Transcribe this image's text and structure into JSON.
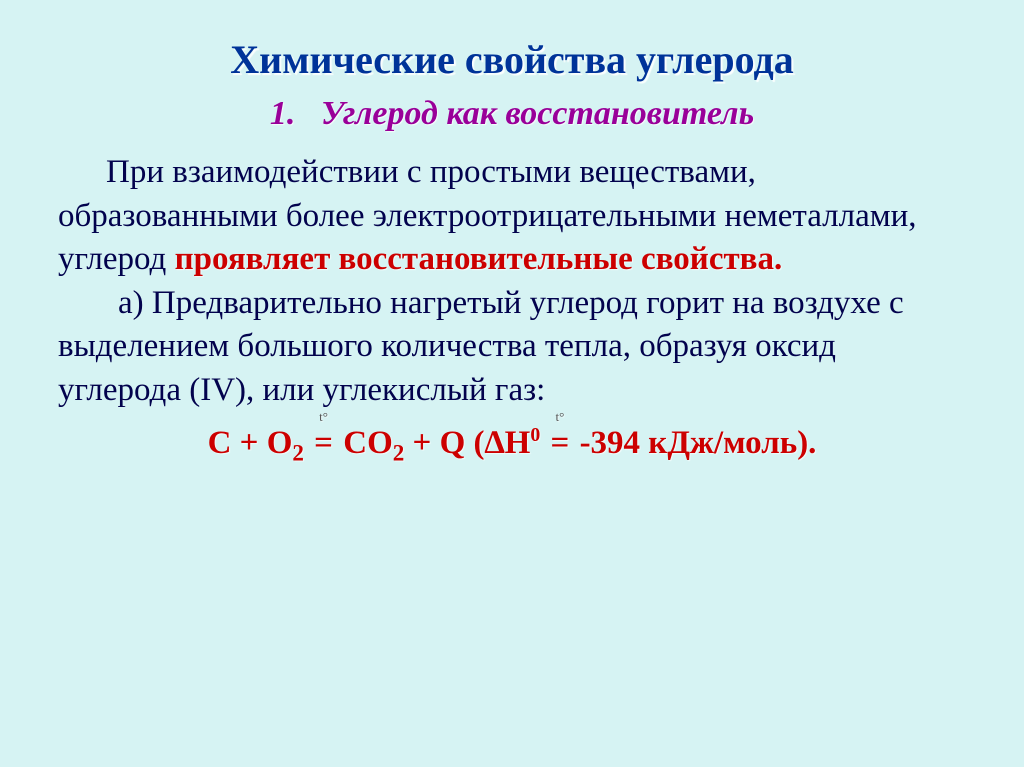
{
  "slide": {
    "background_color": "#d6f3f3",
    "title": {
      "text": "Химические свойства углерода",
      "color": "#003399",
      "fontsize": 40,
      "weight": "bold"
    },
    "subtitle": {
      "number": "1.",
      "text": "Углерод как восстановитель",
      "color": "#990099",
      "fontsize": 34,
      "style": "italic",
      "weight": "bold"
    },
    "para1": {
      "lead": "При взаимодействии с простыми веществами, образованными более электроотрицательными неметаллами, углерод ",
      "emph": "проявляет восстановительные свойства.",
      "emph_color": "#cc0000",
      "fontsize": 33
    },
    "para2": {
      "text": "а)   Предварительно нагретый углерод горит на воздухе с выделением большого количества тепла, образуя оксид углерода (IV), или углекислый газ:",
      "fontsize": 33
    },
    "equation": {
      "prefix": "C + O",
      "o2_sub": "2",
      "mid": " ",
      "t_over_eq1": "t°",
      "eq_sign1": "=",
      "after_eq1": "  CO",
      "co2_sub": "2",
      "plus_q": " + Q (∆H",
      "h_sup": "0",
      "t_over_eq2": "t°",
      "eq_sign2": "=",
      "tail": " -394 кДж/моль).",
      "color": "#cc0000",
      "fontsize": 33
    }
  }
}
